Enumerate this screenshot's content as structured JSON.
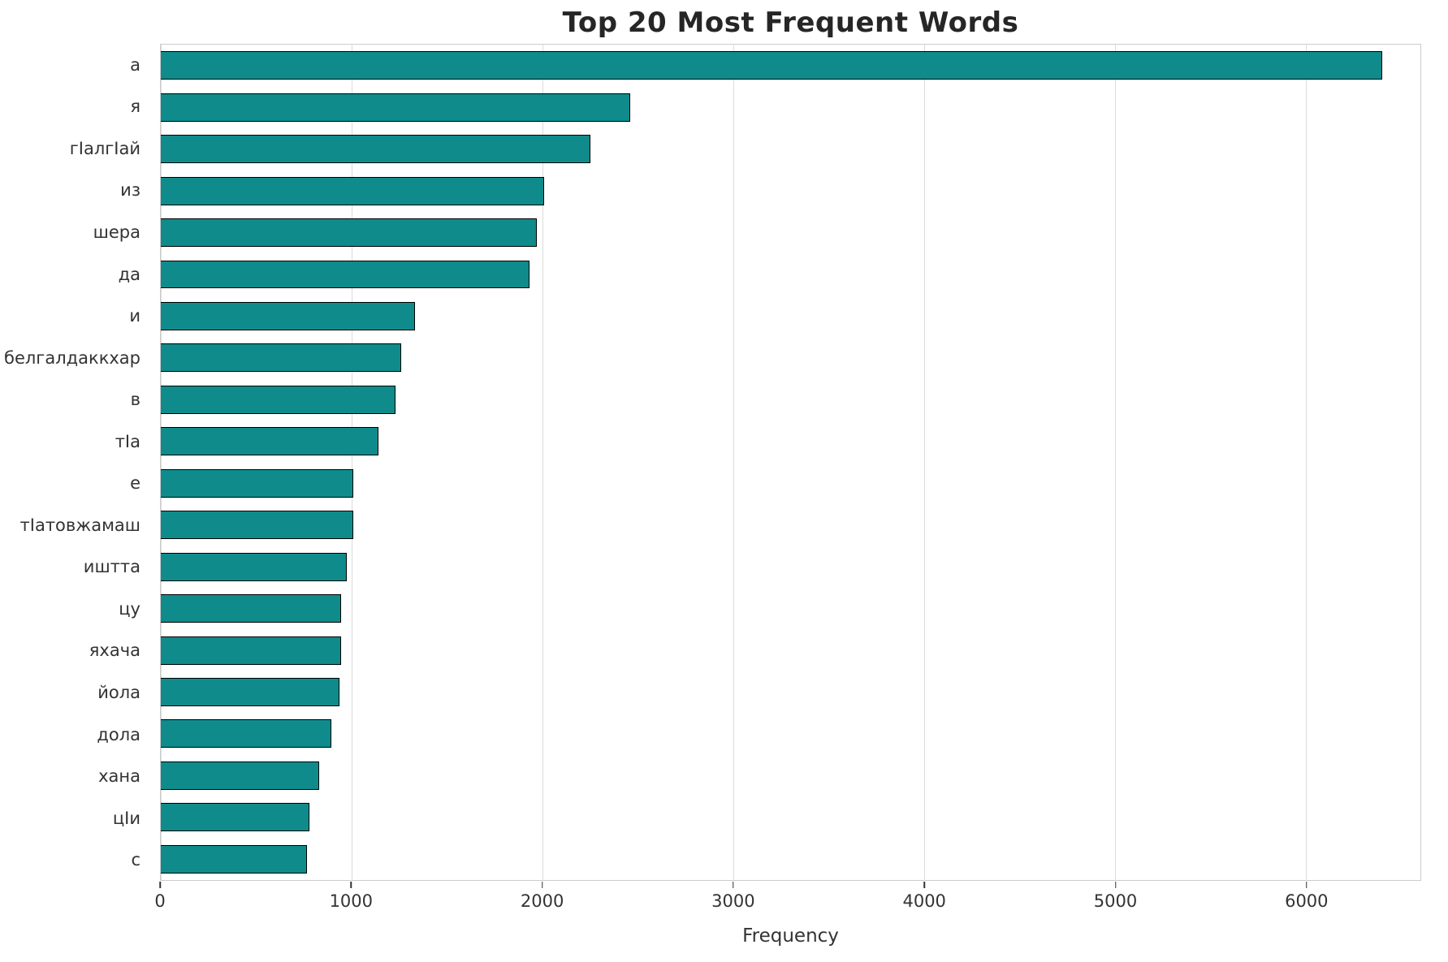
{
  "chart_data": {
    "type": "bar",
    "orientation": "horizontal",
    "title": "Top 20 Most Frequent Words",
    "xlabel": "Frequency",
    "ylabel": "",
    "categories": [
      "а",
      "я",
      "гӀалгӀай",
      "из",
      "шера",
      "да",
      "и",
      "белгалдаккхар",
      "в",
      "тӀа",
      "е",
      "тӀатовжамаш",
      "иштта",
      "цу",
      "яхача",
      "йола",
      "дола",
      "хана",
      "цӀи",
      "с"
    ],
    "values": [
      6400,
      2460,
      2250,
      2010,
      1970,
      1930,
      1330,
      1260,
      1230,
      1140,
      1010,
      1010,
      975,
      945,
      945,
      935,
      895,
      830,
      780,
      765
    ],
    "xlim": [
      0,
      6600
    ],
    "xticks": [
      0,
      1000,
      2000,
      3000,
      4000,
      5000,
      6000
    ],
    "grid": true,
    "legend": false,
    "bar_color": "#0f8b8b",
    "bar_edge_color": "#000000",
    "gridline_color": "#dcdcdc"
  }
}
